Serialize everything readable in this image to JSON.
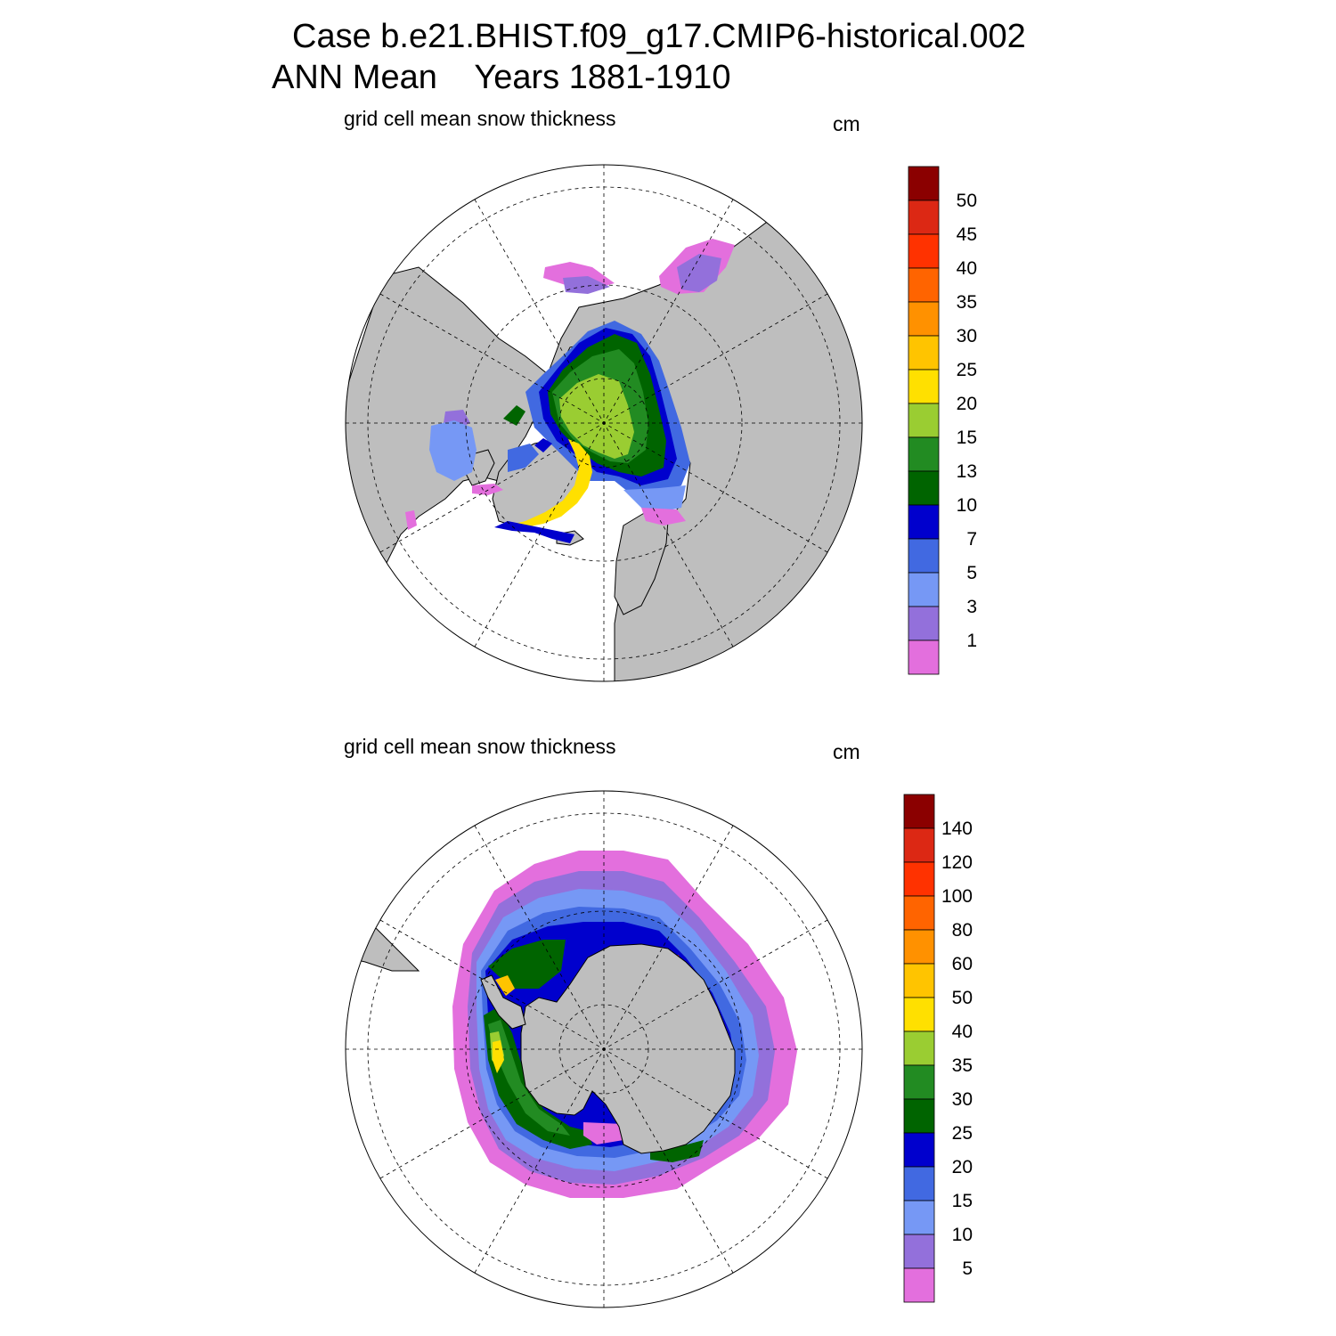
{
  "title": {
    "line1": "Case b.e21.BHIST.f09_g17.CMIP6-historical.002",
    "line2": "ANN Mean    Years 1881-1910"
  },
  "colors": {
    "land": "#bebebe",
    "palette": [
      "#e36fdd",
      "#9370db",
      "#7698f5",
      "#4169e1",
      "#0000cd",
      "#006400",
      "#228b22",
      "#9acd32",
      "#ffe000",
      "#ffc400",
      "#ff9100",
      "#ff6400",
      "#ff3200",
      "#dc2814",
      "#8b0000"
    ]
  },
  "chart_data": [
    {
      "type": "heatmap",
      "projection": "polar stereographic",
      "hemisphere": "north",
      "title": "grid cell mean snow thickness",
      "units": "cm",
      "colorbar_levels": [
        1,
        3,
        5,
        7,
        10,
        13,
        15,
        20,
        25,
        30,
        35,
        40,
        45,
        50
      ],
      "colorbar_labels": [
        "50",
        "45",
        "40",
        "35",
        "30",
        "25",
        "20",
        "15",
        "13",
        "10",
        "7",
        "5",
        "3",
        "1"
      ]
    },
    {
      "type": "heatmap",
      "projection": "polar stereographic",
      "hemisphere": "south",
      "title": "grid cell mean snow thickness",
      "units": "cm",
      "colorbar_levels": [
        5,
        10,
        15,
        20,
        25,
        30,
        35,
        40,
        50,
        60,
        80,
        100,
        120,
        140
      ],
      "colorbar_labels": [
        "140",
        "120",
        "100",
        "80",
        "60",
        "50",
        "40",
        "35",
        "30",
        "25",
        "20",
        "15",
        "10",
        "5"
      ]
    }
  ]
}
